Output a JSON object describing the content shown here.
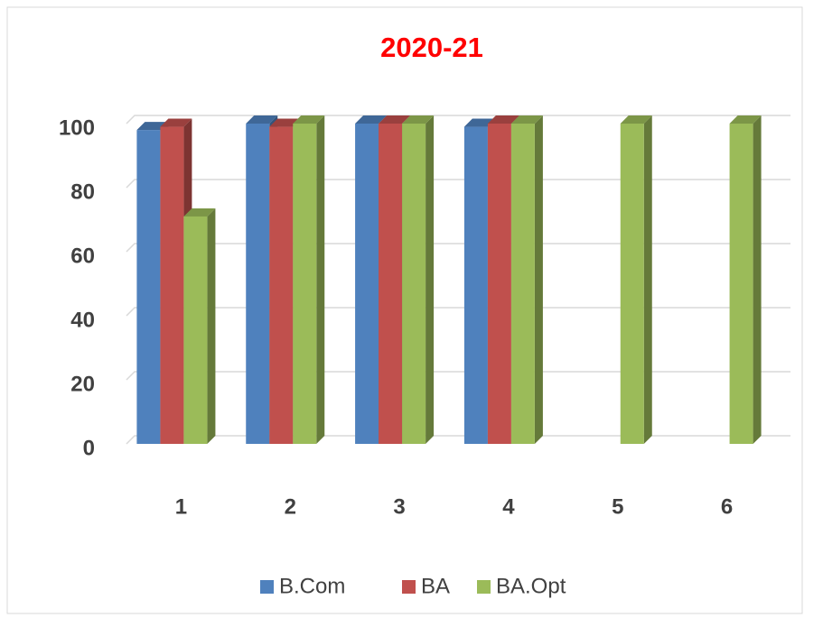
{
  "chart_data": {
    "type": "bar3d",
    "title": "2020-21",
    "categories": [
      "1",
      "2",
      "3",
      "4",
      "5",
      "6"
    ],
    "series": [
      {
        "name": "B.Com",
        "color": "#4f81bd",
        "values": [
          98,
          100,
          100,
          99,
          null,
          null
        ]
      },
      {
        "name": "BA",
        "color": "#c0504d",
        "values": [
          99,
          99,
          100,
          100,
          null,
          null
        ]
      },
      {
        "name": "BA.Opt",
        "color": "#9bbb59",
        "values": [
          71,
          100,
          100,
          100,
          100,
          100
        ]
      }
    ],
    "ylim": [
      0,
      100
    ],
    "yticks": [
      0,
      20,
      40,
      60,
      80,
      100
    ],
    "grid": true,
    "legend": "bottom"
  }
}
